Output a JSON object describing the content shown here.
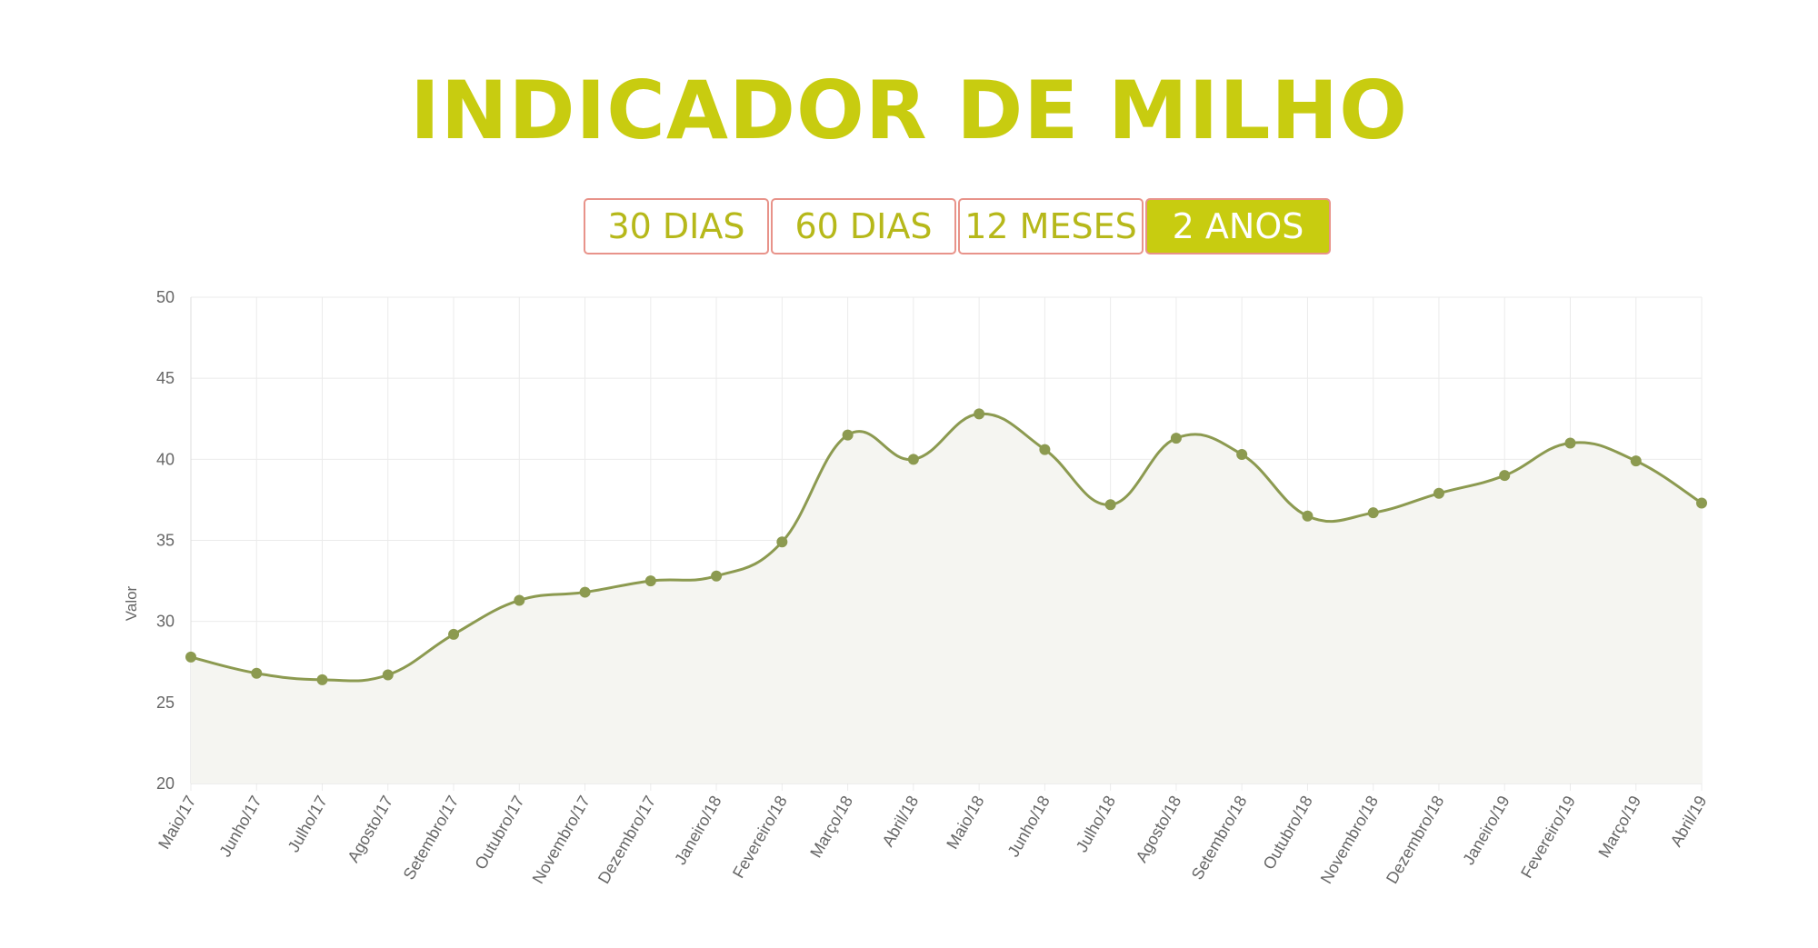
{
  "header": {
    "title": "INDICADOR DE MILHO"
  },
  "range_tabs": [
    {
      "label": "30 DIAS",
      "active": false
    },
    {
      "label": "60 DIAS",
      "active": false
    },
    {
      "label": "12 MESES",
      "active": false
    },
    {
      "label": "2 ANOS",
      "active": true
    }
  ],
  "colors": {
    "accent": "#c8cc10",
    "tab_border": "#e8938a",
    "line": "#8c9a50",
    "point": "#8c9a50",
    "area_fill": "#f5f5f1",
    "grid": "#ebebeb"
  },
  "chart_data": {
    "type": "area",
    "title": "",
    "xlabel": "",
    "ylabel": "Valor",
    "ylim": [
      20,
      50
    ],
    "yticks": [
      20,
      25,
      30,
      35,
      40,
      45,
      50
    ],
    "grid": true,
    "categories": [
      "Maio/17",
      "Junho/17",
      "Julho/17",
      "Agosto/17",
      "Setembro/17",
      "Outubro/17",
      "Novembro/17",
      "Dezembro/17",
      "Janeiro/18",
      "Fevereiro/18",
      "Março/18",
      "Abril/18",
      "Maio/18",
      "Junho/18",
      "Julho/18",
      "Agosto/18",
      "Setembro/18",
      "Outubro/18",
      "Novembro/18",
      "Dezembro/18",
      "Janeiro/19",
      "Fevereiro/19",
      "Março/19",
      "Abril/19"
    ],
    "series": [
      {
        "values": [
          27.8,
          26.8,
          26.4,
          26.7,
          29.2,
          31.3,
          31.8,
          32.5,
          32.8,
          34.9,
          41.5,
          40.0,
          42.8,
          40.6,
          37.2,
          41.3,
          40.3,
          36.5,
          36.7,
          37.9,
          39.0,
          41.0,
          39.9,
          37.3
        ]
      }
    ]
  }
}
